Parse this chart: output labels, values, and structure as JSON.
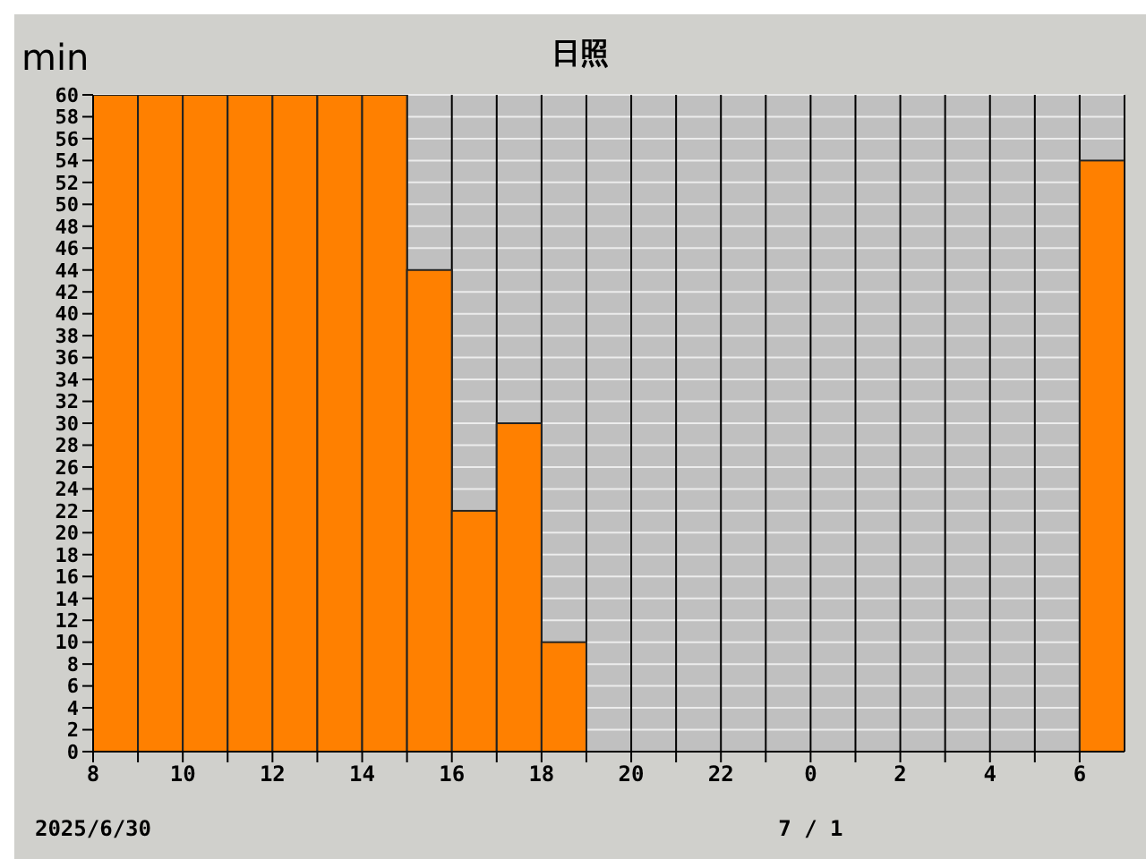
{
  "chart_data": {
    "type": "histogram",
    "title": "日照",
    "ylabel": "min",
    "bins": [
      "2025-06-30T08:00",
      "2025-06-30T09:00",
      "2025-06-30T10:00",
      "2025-06-30T11:00",
      "2025-06-30T12:00",
      "2025-06-30T13:00",
      "2025-06-30T14:00",
      "2025-06-30T15:00",
      "2025-06-30T16:00",
      "2025-06-30T17:00",
      "2025-06-30T18:00",
      "2025-06-30T19:00",
      "2025-06-30T20:00",
      "2025-06-30T21:00",
      "2025-06-30T22:00",
      "2025-06-30T23:00",
      "2025-07-01T00:00",
      "2025-07-01T01:00",
      "2025-07-01T02:00",
      "2025-07-01T03:00",
      "2025-07-01T04:00",
      "2025-07-01T05:00",
      "2025-07-01T06:00",
      "2025-07-01T07:00"
    ],
    "values": [
      60,
      60,
      60,
      60,
      60,
      60,
      60,
      44,
      22,
      30,
      10,
      0,
      0,
      0,
      0,
      0,
      0,
      0,
      0,
      0,
      0,
      0,
      54
    ],
    "color": "#ff8000",
    "xlim": [
      "2025-06-30T08:00",
      "2025-07-01T07:00"
    ],
    "xticks": [
      {
        "value": "2025-06-30T08:00",
        "label": "8"
      },
      {
        "value": "2025-06-30T09:00",
        "label": null
      },
      {
        "value": "2025-06-30T10:00",
        "label": "10"
      },
      {
        "value": "2025-06-30T11:00",
        "label": null
      },
      {
        "value": "2025-06-30T12:00",
        "label": "12"
      },
      {
        "value": "2025-06-30T13:00",
        "label": null
      },
      {
        "value": "2025-06-30T14:00",
        "label": "14"
      },
      {
        "value": "2025-06-30T15:00",
        "label": null
      },
      {
        "value": "2025-06-30T16:00",
        "label": "16"
      },
      {
        "value": "2025-06-30T17:00",
        "label": null
      },
      {
        "value": "2025-06-30T18:00",
        "label": "18"
      },
      {
        "value": "2025-06-30T19:00",
        "label": null
      },
      {
        "value": "2025-06-30T20:00",
        "label": "20"
      },
      {
        "value": "2025-06-30T21:00",
        "label": null
      },
      {
        "value": "2025-06-30T22:00",
        "label": "22"
      },
      {
        "value": "2025-06-30T23:00",
        "label": null
      },
      {
        "value": "2025-07-01T00:00",
        "label": "0"
      },
      {
        "value": "2025-07-01T01:00",
        "label": null
      },
      {
        "value": "2025-07-01T02:00",
        "label": "2"
      },
      {
        "value": "2025-07-01T03:00",
        "label": null
      },
      {
        "value": "2025-07-01T04:00",
        "label": "4"
      },
      {
        "value": "2025-07-01T05:00",
        "label": null
      },
      {
        "value": "2025-07-01T06:00",
        "label": "6"
      }
    ],
    "ylim": [
      0,
      60
    ],
    "yticks": [
      0,
      2,
      4,
      6,
      8,
      10,
      12,
      14,
      16,
      18,
      20,
      22,
      24,
      26,
      28,
      30,
      32,
      34,
      36,
      38,
      40,
      42,
      44,
      46,
      48,
      50,
      52,
      54,
      56,
      58,
      60
    ],
    "grid": true,
    "annotations": [
      "2025/6/30",
      "7 / 1"
    ]
  }
}
